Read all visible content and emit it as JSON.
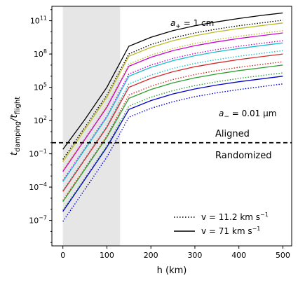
{
  "chart_data": {
    "type": "line",
    "xlabel": "h (km)",
    "ylabel": "t_damping/t_flight",
    "ylabel_main": "t",
    "ylabel_sub1": "damping",
    "ylabel_slash": "/t",
    "ylabel_sub2": "flight",
    "xlim": [
      -25,
      520
    ],
    "ylim_log10": [
      -9.3,
      12.3
    ],
    "yscale": "log",
    "x_ticks": [
      0,
      100,
      200,
      300,
      400,
      500
    ],
    "x_tick_labels": [
      "0",
      "100",
      "200",
      "300",
      "400",
      "500"
    ],
    "y_ticks_log10": [
      -7,
      -4,
      -1,
      2,
      5,
      8,
      11
    ],
    "y_tick_labels": [
      {
        "base": "10",
        "exp": "−7"
      },
      {
        "base": "10",
        "exp": "−4"
      },
      {
        "base": "10",
        "exp": "−1"
      },
      {
        "base": "10",
        "exp": "2"
      },
      {
        "base": "10",
        "exp": "5"
      },
      {
        "base": "10",
        "exp": "8"
      },
      {
        "base": "10",
        "exp": "11"
      }
    ],
    "shaded_region": {
      "x": [
        0,
        130
      ],
      "color": "#e6e6e6"
    },
    "threshold_line": {
      "y": 1,
      "style": "dashed",
      "color": "#000000"
    },
    "x": [
      0,
      50,
      100,
      150,
      200,
      250,
      300,
      350,
      400,
      450,
      500
    ],
    "series": [
      {
        "color": "#000000",
        "style": "solid",
        "log10": [
          -0.6,
          2.1,
          5.0,
          8.7,
          9.5,
          10.1,
          10.55,
          10.9,
          11.2,
          11.47,
          11.7
        ]
      },
      {
        "color": "#000000",
        "style": "dotted",
        "log10": [
          -1.5,
          1.4,
          4.3,
          8.0,
          8.85,
          9.45,
          9.9,
          10.25,
          10.55,
          10.8,
          11.05
        ]
      },
      {
        "color": "#bcbd22",
        "style": "solid",
        "log10": [
          -1.7,
          1.2,
          4.1,
          7.8,
          8.6,
          9.2,
          9.65,
          10.0,
          10.3,
          10.55,
          10.8
        ]
      },
      {
        "color": "#bcbd22",
        "style": "dotted",
        "log10": [
          -2.5,
          0.4,
          3.3,
          7.1,
          7.9,
          8.5,
          8.95,
          9.3,
          9.6,
          9.85,
          10.1
        ]
      },
      {
        "color": "#cc00cc",
        "style": "solid",
        "log10": [
          -2.6,
          0.3,
          3.2,
          6.9,
          7.7,
          8.3,
          8.75,
          9.1,
          9.4,
          9.65,
          9.9
        ]
      },
      {
        "color": "#cc00cc",
        "style": "dotted",
        "log10": [
          -3.4,
          -0.5,
          2.4,
          6.2,
          7.0,
          7.6,
          8.05,
          8.4,
          8.7,
          8.95,
          9.2
        ]
      },
      {
        "color": "#17becf",
        "style": "solid",
        "log10": [
          -3.5,
          -0.6,
          2.3,
          6.0,
          6.8,
          7.4,
          7.85,
          8.2,
          8.5,
          8.75,
          9.0
        ]
      },
      {
        "color": "#17becf",
        "style": "dotted",
        "log10": [
          -4.3,
          -1.4,
          1.5,
          5.3,
          6.1,
          6.7,
          7.15,
          7.5,
          7.8,
          8.05,
          8.3
        ]
      },
      {
        "color": "#d62728",
        "style": "solid",
        "log10": [
          -4.4,
          -1.5,
          1.4,
          5.0,
          5.8,
          6.4,
          6.85,
          7.2,
          7.5,
          7.75,
          8.0
        ]
      },
      {
        "color": "#d62728",
        "style": "dotted",
        "log10": [
          -5.2,
          -2.3,
          0.6,
          4.3,
          5.1,
          5.7,
          6.15,
          6.5,
          6.8,
          7.05,
          7.3
        ]
      },
      {
        "color": "#2ca02c",
        "style": "solid",
        "log10": [
          -5.3,
          -2.4,
          0.5,
          4.0,
          4.8,
          5.4,
          5.85,
          6.2,
          6.5,
          6.75,
          7.0
        ]
      },
      {
        "color": "#2ca02c",
        "style": "dotted",
        "log10": [
          -6.1,
          -3.2,
          -0.3,
          3.3,
          4.1,
          4.7,
          5.15,
          5.5,
          5.8,
          6.05,
          6.3
        ]
      },
      {
        "color": "#0000cc",
        "style": "solid",
        "log10": [
          -6.2,
          -3.3,
          -0.4,
          3.0,
          3.8,
          4.4,
          4.85,
          5.2,
          5.5,
          5.75,
          6.0
        ]
      },
      {
        "color": "#0000cc",
        "style": "dotted",
        "log10": [
          -7.1,
          -4.2,
          -1.3,
          2.3,
          3.1,
          3.7,
          4.15,
          4.5,
          4.8,
          5.05,
          5.3
        ]
      }
    ],
    "annotations": {
      "a_plus": {
        "lhs": "a",
        "sub": "+",
        "rhs": " = 1 cm",
        "color": "#000000"
      },
      "a_minus": {
        "lhs": "a",
        "sub": "−",
        "rhs": " = 0.01 μm",
        "color": "#0000cc"
      },
      "aligned": "Aligned",
      "randomized": "Randomized"
    },
    "legend": {
      "placement": "lower-right",
      "entries": [
        {
          "style": "dotted",
          "color": "#000000",
          "label": "v = 11.2 km s",
          "exp": "−1"
        },
        {
          "style": "solid",
          "color": "#000000",
          "label": "v = 71 km s",
          "exp": "−1"
        }
      ]
    }
  }
}
